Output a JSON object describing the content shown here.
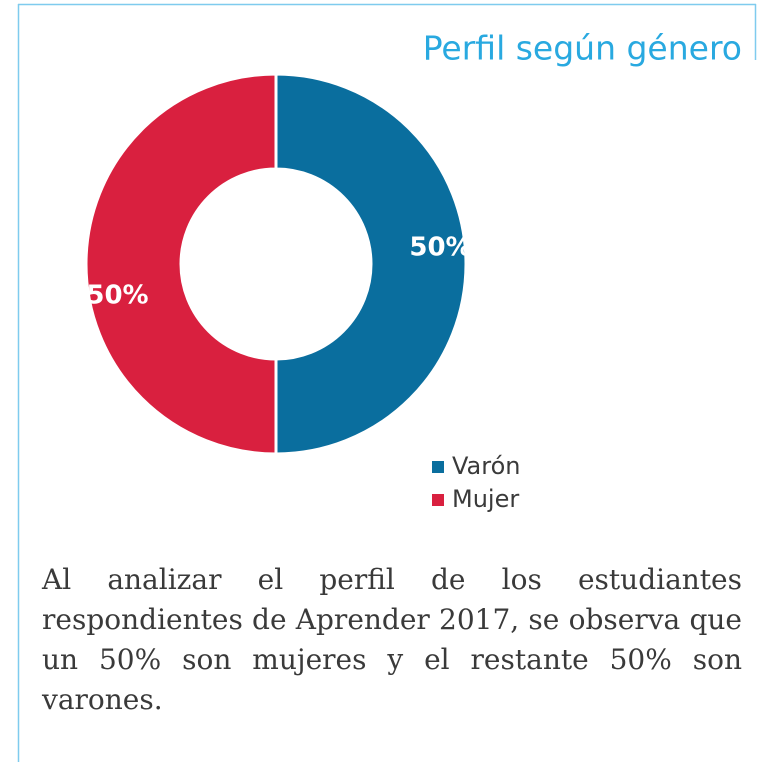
{
  "chart_data": {
    "type": "donut",
    "title": "Perfil según género",
    "categories": [
      "Varón",
      "Mujer"
    ],
    "values": [
      50,
      50
    ],
    "value_labels": [
      "50%",
      "50%"
    ],
    "colors": [
      "#0a6e9e",
      "#d9203f"
    ],
    "legend": "bottom-right"
  },
  "description": "Al analizar el perfil de los estudiantes respondientes de Aprender 2017, se observa que un 50% son mujeres y el restante 50% son varones."
}
